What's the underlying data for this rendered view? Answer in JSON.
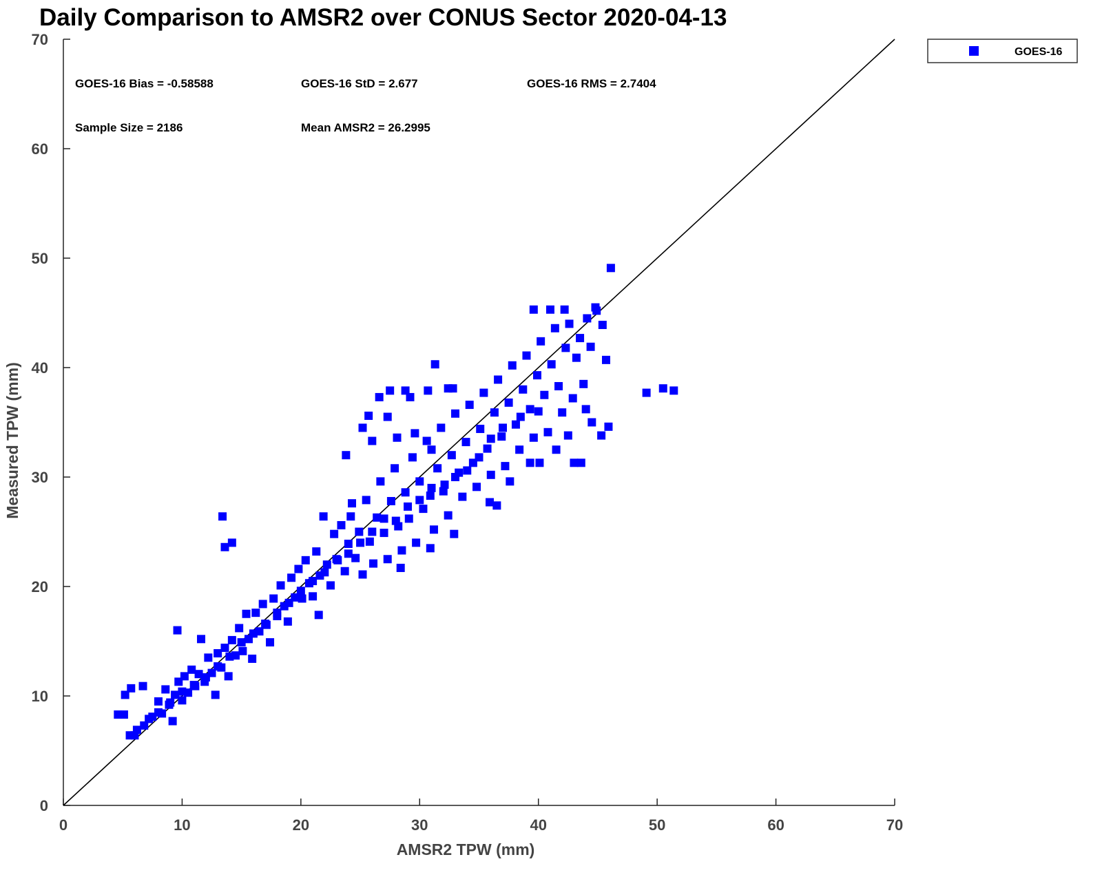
{
  "chart_data": {
    "type": "scatter",
    "title": "Daily Comparison to AMSR2 over CONUS Sector 2020-04-13",
    "xlabel": "AMSR2 TPW (mm)",
    "ylabel": "Measured TPW (mm)",
    "xlim": [
      0,
      70
    ],
    "ylim": [
      0,
      70
    ],
    "xticks": [
      "0",
      "10",
      "20",
      "30",
      "40",
      "50",
      "60",
      "70"
    ],
    "yticks": [
      "0",
      "10",
      "20",
      "30",
      "40",
      "50",
      "60",
      "70"
    ],
    "grid": false,
    "legend": {
      "placement": "top-right outside",
      "entries": [
        "GOES-16"
      ]
    },
    "reference_line": "y = x",
    "stats": {
      "bias": "GOES-16 Bias = -0.58588",
      "std": "GOES-16 StD = 2.677",
      "rms": "GOES-16 RMS = 2.7404",
      "sample": "Sample Size = 2186",
      "mean": "Mean AMSR2 = 26.2995"
    },
    "colors": {
      "series": "#0000ff",
      "line": "#000000"
    },
    "series": [
      {
        "name": "GOES-16",
        "note": "representative subset of 2186 points",
        "points": [
          [
            46.1,
            49.1
          ],
          [
            49.1,
            37.7
          ],
          [
            50.5,
            38.1
          ],
          [
            51.4,
            37.9
          ],
          [
            13.4,
            26.4
          ],
          [
            13.6,
            23.6
          ],
          [
            14.2,
            24.0
          ],
          [
            9.6,
            16.0
          ],
          [
            4.6,
            8.3
          ],
          [
            5.1,
            8.3
          ],
          [
            5.2,
            10.1
          ],
          [
            5.7,
            10.7
          ],
          [
            6.7,
            10.9
          ],
          [
            5.6,
            6.4
          ],
          [
            6.0,
            6.4
          ],
          [
            6.2,
            6.9
          ],
          [
            6.8,
            7.3
          ],
          [
            7.2,
            7.9
          ],
          [
            31.3,
            40.3
          ],
          [
            23.8,
            32.0
          ],
          [
            26.6,
            37.3
          ],
          [
            27.5,
            37.9
          ],
          [
            28.8,
            37.9
          ],
          [
            30.7,
            37.9
          ],
          [
            32.4,
            38.1
          ],
          [
            32.8,
            38.1
          ],
          [
            29.2,
            37.3
          ],
          [
            39.6,
            45.3
          ],
          [
            41.0,
            45.3
          ],
          [
            42.2,
            45.3
          ],
          [
            44.8,
            45.5
          ],
          [
            45.4,
            43.9
          ],
          [
            45.7,
            40.7
          ],
          [
            45.9,
            34.6
          ],
          [
            45.3,
            33.8
          ],
          [
            43.6,
            31.3
          ],
          [
            43.0,
            31.3
          ],
          [
            40.1,
            31.3
          ],
          [
            39.3,
            31.3
          ],
          [
            35.9,
            27.7
          ],
          [
            37.6,
            29.6
          ],
          [
            28.4,
            21.7
          ],
          [
            21.5,
            17.4
          ],
          [
            32.9,
            24.8
          ],
          [
            30.9,
            23.5
          ],
          [
            36.5,
            27.4
          ],
          [
            44.5,
            35.0
          ],
          [
            44.0,
            36.2
          ],
          [
            42.5,
            33.8
          ],
          [
            41.5,
            32.5
          ],
          [
            25.2,
            34.5
          ],
          [
            25.7,
            35.6
          ],
          [
            26.0,
            33.3
          ],
          [
            27.3,
            35.5
          ],
          [
            28.1,
            33.6
          ],
          [
            29.6,
            34.0
          ],
          [
            31.0,
            32.5
          ],
          [
            24.2,
            26.4
          ],
          [
            7.5,
            8.1
          ],
          [
            8.0,
            9.5
          ],
          [
            8.3,
            8.4
          ],
          [
            8.6,
            10.6
          ],
          [
            8.9,
            9.2
          ],
          [
            9.2,
            7.7
          ],
          [
            9.4,
            10.1
          ],
          [
            9.7,
            11.3
          ],
          [
            10.0,
            9.6
          ],
          [
            10.2,
            11.8
          ],
          [
            10.5,
            10.3
          ],
          [
            10.8,
            12.4
          ],
          [
            11.1,
            10.9
          ],
          [
            11.4,
            12.0
          ],
          [
            11.6,
            15.2
          ],
          [
            11.9,
            11.3
          ],
          [
            12.2,
            13.5
          ],
          [
            12.5,
            12.1
          ],
          [
            12.8,
            10.1
          ],
          [
            13.0,
            13.9
          ],
          [
            13.3,
            12.6
          ],
          [
            13.6,
            14.4
          ],
          [
            13.9,
            11.8
          ],
          [
            14.2,
            15.1
          ],
          [
            14.5,
            13.7
          ],
          [
            14.8,
            16.2
          ],
          [
            15.1,
            14.1
          ],
          [
            15.4,
            17.5
          ],
          [
            15.6,
            15.2
          ],
          [
            15.9,
            13.4
          ],
          [
            16.2,
            17.6
          ],
          [
            16.5,
            15.9
          ],
          [
            16.8,
            18.4
          ],
          [
            17.1,
            16.5
          ],
          [
            17.4,
            14.9
          ],
          [
            17.7,
            18.9
          ],
          [
            18.0,
            17.3
          ],
          [
            18.3,
            20.1
          ],
          [
            18.6,
            18.2
          ],
          [
            18.9,
            16.8
          ],
          [
            19.2,
            20.8
          ],
          [
            19.5,
            19.0
          ],
          [
            19.8,
            21.6
          ],
          [
            20.1,
            18.9
          ],
          [
            20.4,
            22.4
          ],
          [
            20.7,
            20.3
          ],
          [
            21.0,
            19.1
          ],
          [
            21.3,
            23.2
          ],
          [
            21.6,
            21.0
          ],
          [
            21.9,
            26.4
          ],
          [
            22.2,
            22.0
          ],
          [
            22.5,
            20.1
          ],
          [
            22.8,
            24.8
          ],
          [
            23.1,
            22.4
          ],
          [
            23.4,
            25.6
          ],
          [
            23.7,
            21.4
          ],
          [
            24.0,
            23.9
          ],
          [
            24.3,
            27.6
          ],
          [
            24.6,
            22.6
          ],
          [
            24.9,
            25.0
          ],
          [
            25.2,
            21.1
          ],
          [
            25.5,
            27.9
          ],
          [
            25.8,
            24.1
          ],
          [
            26.1,
            22.1
          ],
          [
            26.4,
            26.3
          ],
          [
            26.7,
            29.6
          ],
          [
            27.0,
            24.9
          ],
          [
            27.3,
            22.5
          ],
          [
            27.6,
            27.8
          ],
          [
            27.9,
            30.8
          ],
          [
            28.2,
            25.5
          ],
          [
            28.5,
            23.3
          ],
          [
            28.8,
            28.6
          ],
          [
            29.1,
            26.2
          ],
          [
            29.4,
            31.8
          ],
          [
            29.7,
            24.0
          ],
          [
            30.0,
            29.6
          ],
          [
            30.3,
            27.1
          ],
          [
            30.6,
            33.3
          ],
          [
            30.9,
            28.3
          ],
          [
            31.2,
            25.2
          ],
          [
            31.5,
            30.8
          ],
          [
            31.8,
            34.5
          ],
          [
            32.1,
            29.3
          ],
          [
            32.4,
            26.5
          ],
          [
            32.7,
            32.0
          ],
          [
            33.0,
            35.8
          ],
          [
            33.3,
            30.4
          ],
          [
            33.6,
            28.2
          ],
          [
            33.9,
            33.2
          ],
          [
            34.2,
            36.6
          ],
          [
            34.5,
            31.3
          ],
          [
            34.8,
            29.1
          ],
          [
            35.1,
            34.4
          ],
          [
            35.4,
            37.7
          ],
          [
            35.7,
            32.6
          ],
          [
            36.0,
            30.2
          ],
          [
            36.3,
            35.9
          ],
          [
            36.6,
            38.9
          ],
          [
            36.9,
            33.7
          ],
          [
            37.2,
            31.0
          ],
          [
            37.5,
            36.8
          ],
          [
            37.8,
            40.2
          ],
          [
            38.1,
            34.8
          ],
          [
            38.4,
            32.5
          ],
          [
            38.7,
            38.0
          ],
          [
            39.0,
            41.1
          ],
          [
            39.3,
            36.2
          ],
          [
            39.6,
            33.6
          ],
          [
            39.9,
            39.3
          ],
          [
            40.2,
            42.4
          ],
          [
            40.5,
            37.5
          ],
          [
            40.8,
            34.1
          ],
          [
            41.1,
            40.3
          ],
          [
            41.4,
            43.6
          ],
          [
            41.7,
            38.3
          ],
          [
            42.0,
            35.9
          ],
          [
            42.3,
            41.8
          ],
          [
            42.6,
            44.0
          ],
          [
            42.9,
            37.2
          ],
          [
            43.2,
            40.9
          ],
          [
            43.5,
            42.7
          ],
          [
            43.8,
            38.5
          ],
          [
            44.1,
            44.5
          ],
          [
            44.4,
            41.9
          ],
          [
            44.9,
            45.2
          ],
          [
            40.0,
            36.0
          ],
          [
            38.5,
            35.5
          ],
          [
            37.0,
            34.5
          ],
          [
            36.0,
            33.5
          ],
          [
            35.0,
            31.8
          ],
          [
            34.0,
            30.6
          ],
          [
            33.0,
            30.0
          ],
          [
            32.0,
            28.7
          ],
          [
            31.0,
            29.0
          ],
          [
            30.0,
            27.9
          ],
          [
            29.0,
            27.3
          ],
          [
            28.0,
            26.0
          ],
          [
            27.0,
            26.2
          ],
          [
            26.0,
            25.0
          ],
          [
            25.0,
            24.0
          ],
          [
            24.0,
            23.0
          ],
          [
            23.0,
            22.5
          ],
          [
            22.0,
            21.3
          ],
          [
            21.0,
            20.5
          ],
          [
            20.0,
            19.6
          ],
          [
            19.0,
            18.5
          ],
          [
            18.0,
            17.6
          ],
          [
            17.0,
            16.6
          ],
          [
            16.0,
            15.7
          ],
          [
            15.0,
            14.9
          ],
          [
            14.0,
            13.6
          ],
          [
            13.0,
            12.7
          ],
          [
            12.0,
            11.7
          ],
          [
            11.0,
            11.0
          ],
          [
            10.0,
            10.4
          ],
          [
            9.0,
            9.4
          ],
          [
            8.0,
            8.5
          ]
        ]
      }
    ]
  }
}
